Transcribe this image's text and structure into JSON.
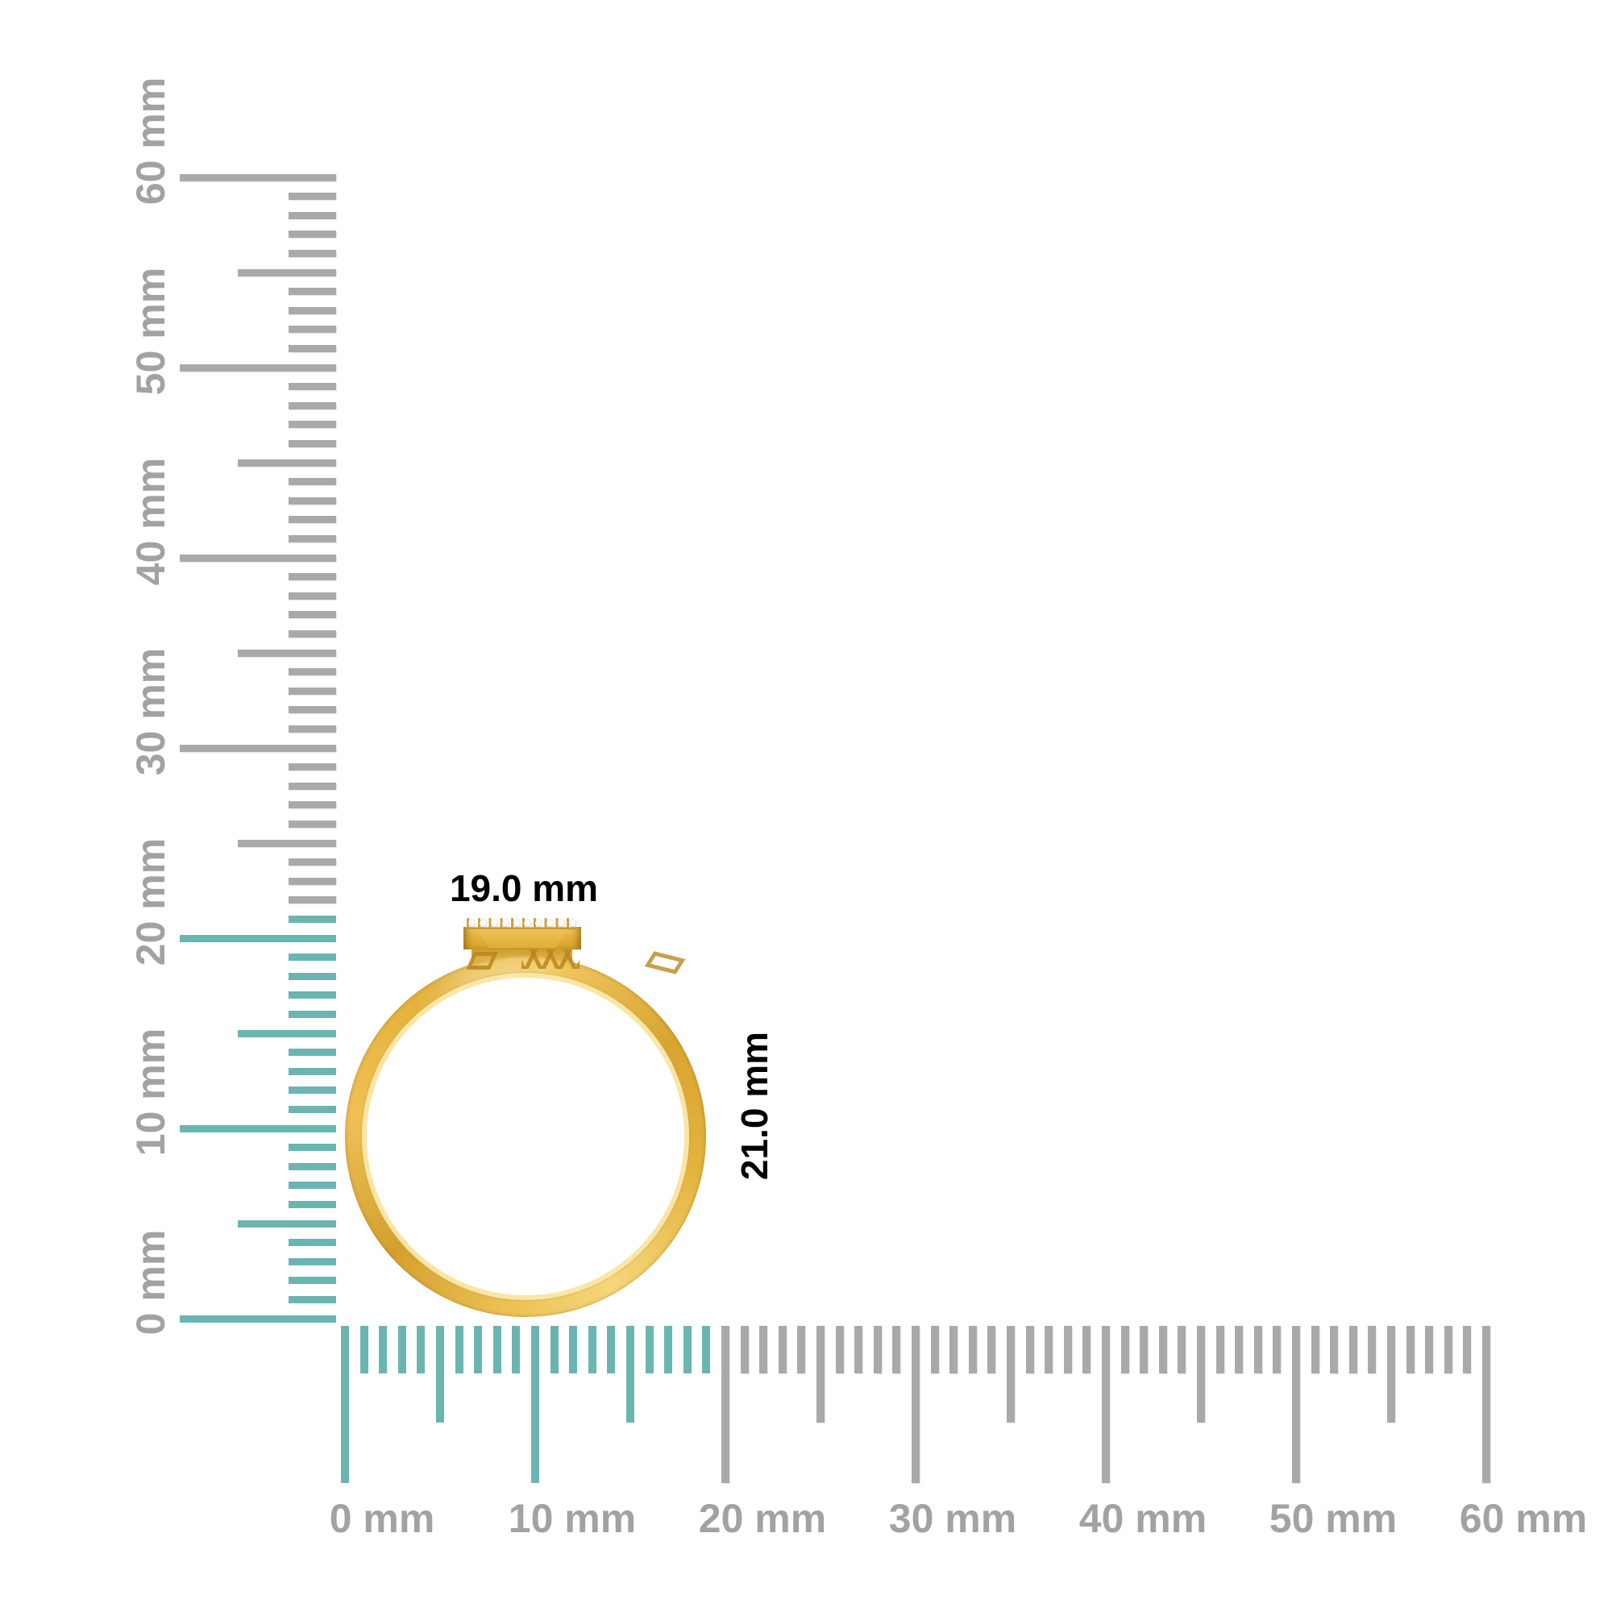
{
  "object": {
    "name": "gold ring with diamond-set bar, side view",
    "stone_count": 10
  },
  "measurement": {
    "width_label": "19.0 mm",
    "height_label": "21.0 mm"
  },
  "rulers": {
    "unit": "mm",
    "tick_interval_mm": 1,
    "mid_tick_interval_mm": 5,
    "major_tick_interval_mm": 10,
    "vertical": {
      "range_mm": [
        0,
        60
      ],
      "labels": [
        "0 mm",
        "10 mm",
        "20 mm",
        "30 mm",
        "40 mm",
        "50 mm",
        "60 mm"
      ],
      "highlight_extent_mm": 21
    },
    "horizontal": {
      "range_mm": [
        0,
        60
      ],
      "labels": [
        "0 mm",
        "10 mm",
        "20 mm",
        "30 mm",
        "40 mm",
        "50 mm",
        "60 mm"
      ],
      "highlight_extent_mm": 19
    },
    "colors": {
      "highlight_tick": "#6AB5B1",
      "tick": "#A9A9A9",
      "label": "#A2A2A2"
    }
  },
  "ring_colors": {
    "gold_highlight": "#FBEDB9",
    "gold_mid": "#E7B93F",
    "gold_dark": "#C6942B",
    "stone": "#F2F4F7"
  }
}
